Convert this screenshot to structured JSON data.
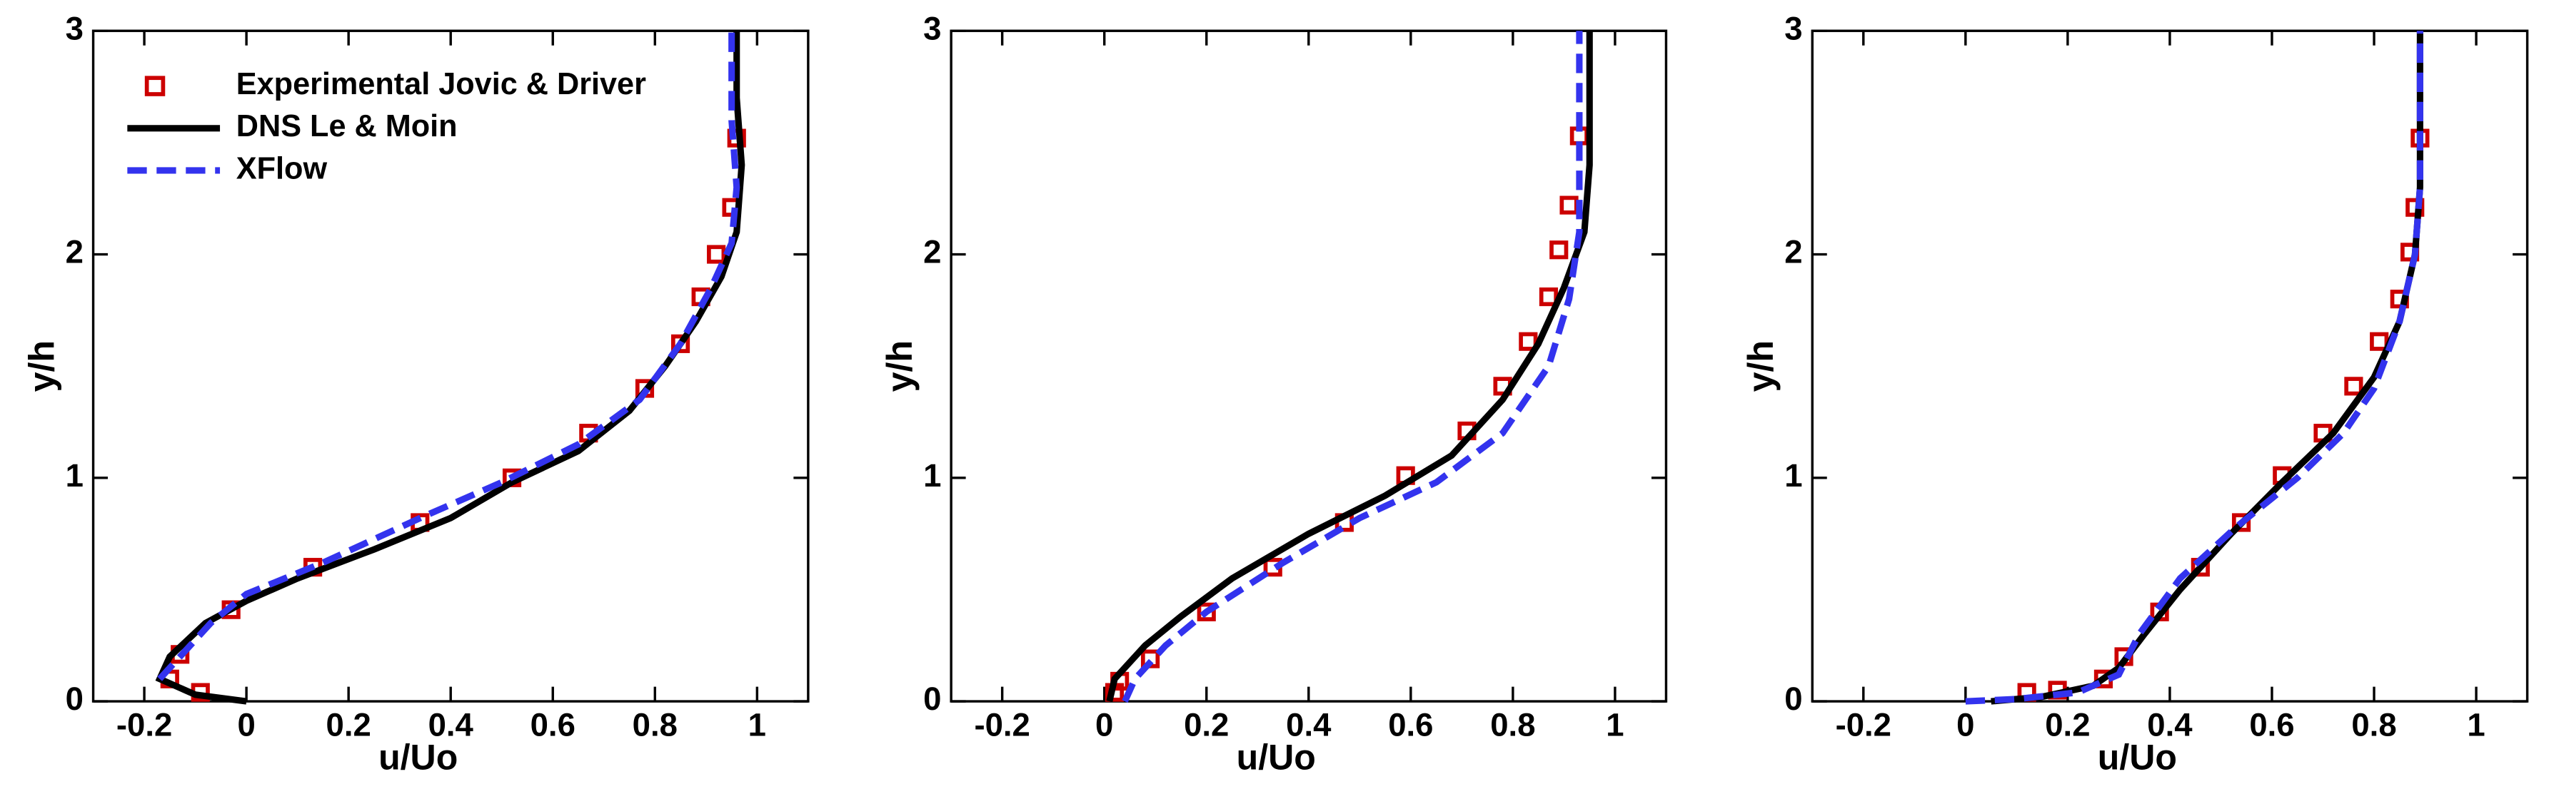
{
  "chart_data": [
    {
      "type": "line",
      "xlabel": "u/Uo",
      "ylabel": "y/h",
      "xlim": [
        -0.3,
        1.1
      ],
      "ylim": [
        0,
        3
      ],
      "xticks": [
        -0.2,
        0,
        0.2,
        0.4,
        0.6,
        0.8,
        1
      ],
      "yticks": [
        0,
        1,
        2,
        3
      ],
      "legend": "upper left",
      "series": [
        {
          "name": "Experimental Jovic & Driver",
          "style": "markers",
          "color": "#cc0000",
          "x": [
            -0.09,
            -0.15,
            -0.13,
            -0.03,
            0.13,
            0.34,
            0.52,
            0.67,
            0.78,
            0.85,
            0.89,
            0.92,
            0.95,
            0.96
          ],
          "values": [
            0.04,
            0.1,
            0.21,
            0.41,
            0.6,
            0.8,
            1.0,
            1.2,
            1.4,
            1.6,
            1.81,
            2.0,
            2.21,
            2.52
          ]
        },
        {
          "name": "DNS Le & Moin",
          "style": "solid",
          "color": "#000000",
          "x": [
            0,
            -0.1,
            -0.17,
            -0.15,
            -0.08,
            0,
            0.1,
            0.25,
            0.4,
            0.52,
            0.65,
            0.75,
            0.82,
            0.88,
            0.93,
            0.96,
            0.97,
            0.96,
            0.96
          ],
          "values": [
            0,
            0.03,
            0.1,
            0.2,
            0.35,
            0.45,
            0.55,
            0.68,
            0.82,
            0.98,
            1.12,
            1.3,
            1.5,
            1.7,
            1.9,
            2.1,
            2.4,
            2.7,
            3.0
          ]
        },
        {
          "name": "XFlow",
          "style": "dashed",
          "color": "#3333ee",
          "x": [
            -0.17,
            -0.13,
            -0.07,
            0,
            0.15,
            0.35,
            0.5,
            0.65,
            0.77,
            0.85,
            0.91,
            0.95,
            0.96,
            0.95,
            0.95
          ],
          "values": [
            0.1,
            0.2,
            0.35,
            0.48,
            0.62,
            0.83,
            0.98,
            1.15,
            1.35,
            1.6,
            1.85,
            2.05,
            2.3,
            2.6,
            3.0
          ]
        }
      ]
    },
    {
      "type": "line",
      "xlabel": "u/Uo",
      "ylabel": "y/h",
      "xlim": [
        -0.3,
        1.1
      ],
      "ylim": [
        0,
        3
      ],
      "xticks": [
        -0.2,
        0,
        0.2,
        0.4,
        0.6,
        0.8,
        1
      ],
      "yticks": [
        0,
        1,
        2,
        3
      ],
      "series": [
        {
          "style": "markers",
          "color": "#cc0000",
          "x": [
            0.02,
            0.03,
            0.09,
            0.2,
            0.33,
            0.47,
            0.59,
            0.71,
            0.78,
            0.83,
            0.87,
            0.89,
            0.91,
            0.93
          ],
          "values": [
            0.04,
            0.09,
            0.19,
            0.4,
            0.6,
            0.8,
            1.01,
            1.21,
            1.41,
            1.61,
            1.81,
            2.02,
            2.22,
            2.53
          ]
        },
        {
          "style": "solid",
          "color": "#000000",
          "x": [
            0.01,
            0.02,
            0.08,
            0.15,
            0.25,
            0.4,
            0.55,
            0.68,
            0.78,
            0.85,
            0.9,
            0.94,
            0.95,
            0.95
          ],
          "values": [
            0,
            0.1,
            0.25,
            0.38,
            0.55,
            0.75,
            0.92,
            1.1,
            1.35,
            1.6,
            1.85,
            2.1,
            2.4,
            3.0
          ]
        },
        {
          "style": "dashed",
          "color": "#3333ee",
          "x": [
            0.04,
            0.06,
            0.12,
            0.2,
            0.35,
            0.5,
            0.65,
            0.78,
            0.87,
            0.91,
            0.93,
            0.93,
            0.93
          ],
          "values": [
            0,
            0.1,
            0.25,
            0.4,
            0.62,
            0.82,
            0.98,
            1.2,
            1.5,
            1.8,
            2.1,
            2.5,
            3.0
          ]
        }
      ]
    },
    {
      "type": "line",
      "xlabel": "u/Uo",
      "ylabel": "y/h",
      "xlim": [
        -0.3,
        1.1
      ],
      "ylim": [
        0,
        3
      ],
      "xticks": [
        -0.2,
        0,
        0.2,
        0.4,
        0.6,
        0.8,
        1
      ],
      "yticks": [
        0,
        1,
        2,
        3
      ],
      "series": [
        {
          "style": "markers",
          "color": "#cc0000",
          "x": [
            0.12,
            0.18,
            0.27,
            0.31,
            0.38,
            0.46,
            0.54,
            0.62,
            0.7,
            0.76,
            0.81,
            0.85,
            0.87,
            0.88,
            0.89
          ],
          "values": [
            0.04,
            0.05,
            0.1,
            0.2,
            0.4,
            0.6,
            0.8,
            1.01,
            1.2,
            1.41,
            1.61,
            1.8,
            2.01,
            2.21,
            2.52
          ]
        },
        {
          "style": "solid",
          "color": "#000000",
          "x": [
            0.05,
            0.15,
            0.25,
            0.3,
            0.35,
            0.42,
            0.52,
            0.62,
            0.72,
            0.8,
            0.85,
            0.88,
            0.89,
            0.89
          ],
          "values": [
            0,
            0.02,
            0.07,
            0.15,
            0.3,
            0.5,
            0.75,
            0.98,
            1.2,
            1.45,
            1.7,
            2.0,
            2.3,
            3.0
          ]
        },
        {
          "style": "dashed",
          "color": "#3333ee",
          "x": [
            0,
            0.1,
            0.22,
            0.3,
            0.34,
            0.42,
            0.53,
            0.65,
            0.74,
            0.8,
            0.85,
            0.88,
            0.89,
            0.89
          ],
          "values": [
            0,
            0.01,
            0.04,
            0.12,
            0.3,
            0.55,
            0.78,
            1.0,
            1.2,
            1.4,
            1.7,
            2.0,
            2.3,
            3.0
          ]
        }
      ]
    }
  ]
}
